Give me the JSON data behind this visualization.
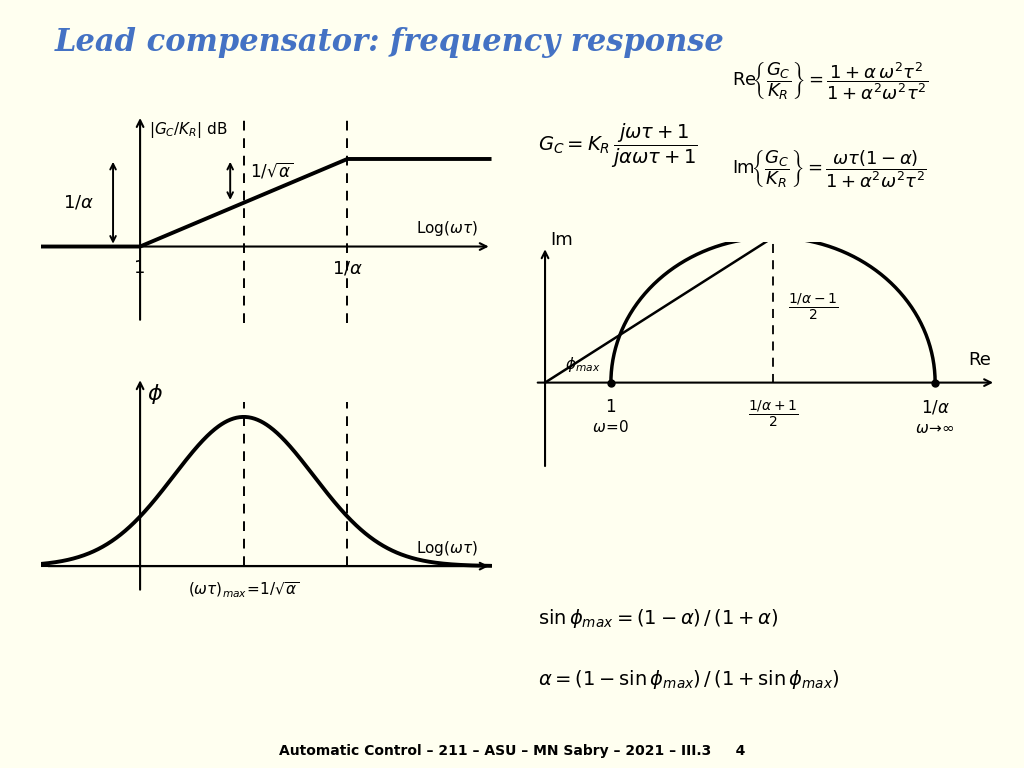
{
  "bg_color": "#FFFFF0",
  "title": "Lead compensator: frequency response",
  "title_color": "#4472C4",
  "title_fontsize": 22,
  "footer": "Automatic Control – 211 – ASU – MN Sabry – 2021 – III.3     4",
  "line_color": "#000000",
  "text_color": "#000000"
}
